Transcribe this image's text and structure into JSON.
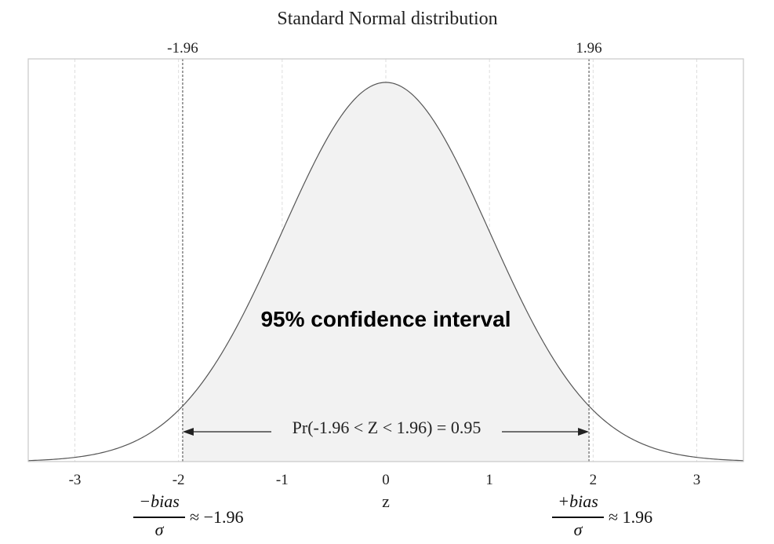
{
  "chart_data": {
    "type": "area",
    "title": "Standard Normal distribution",
    "xlabel": "z",
    "xlim": [
      -3.45,
      3.45
    ],
    "ylim": [
      0,
      0.4
    ],
    "x_ticks": [
      -3,
      -2,
      -1,
      0,
      1,
      2,
      3
    ],
    "x_tick_labels": [
      "-3",
      "-2",
      "-1",
      "0",
      "1",
      "2",
      "3"
    ],
    "grid": "vertical dashed",
    "critical_values": [
      -1.96,
      1.96
    ],
    "critical_value_labels": [
      "-1.96",
      "1.96"
    ],
    "shaded_interval": [
      -1.96,
      1.96
    ],
    "series": [
      {
        "function": "standard-normal-pdf",
        "mean": 0,
        "sd": 1
      }
    ],
    "annotations": {
      "confidence_label": "95% confidence interval",
      "probability_text": "Pr(-1.96 < Z < 1.96) = 0.95",
      "probability_arrow": [
        -1.96,
        1.96
      ]
    },
    "colors": {
      "shade": "#f2f2f2",
      "curve": "#555555",
      "frame": "#cccccc",
      "grid": "#dddddd"
    }
  },
  "formulas": {
    "left": {
      "sign_numerator": "−bias",
      "denominator": "σ",
      "rhs": "≈ −1.96"
    },
    "right": {
      "sign_numerator": "+bias",
      "denominator": "σ",
      "rhs": "≈ 1.96"
    }
  }
}
